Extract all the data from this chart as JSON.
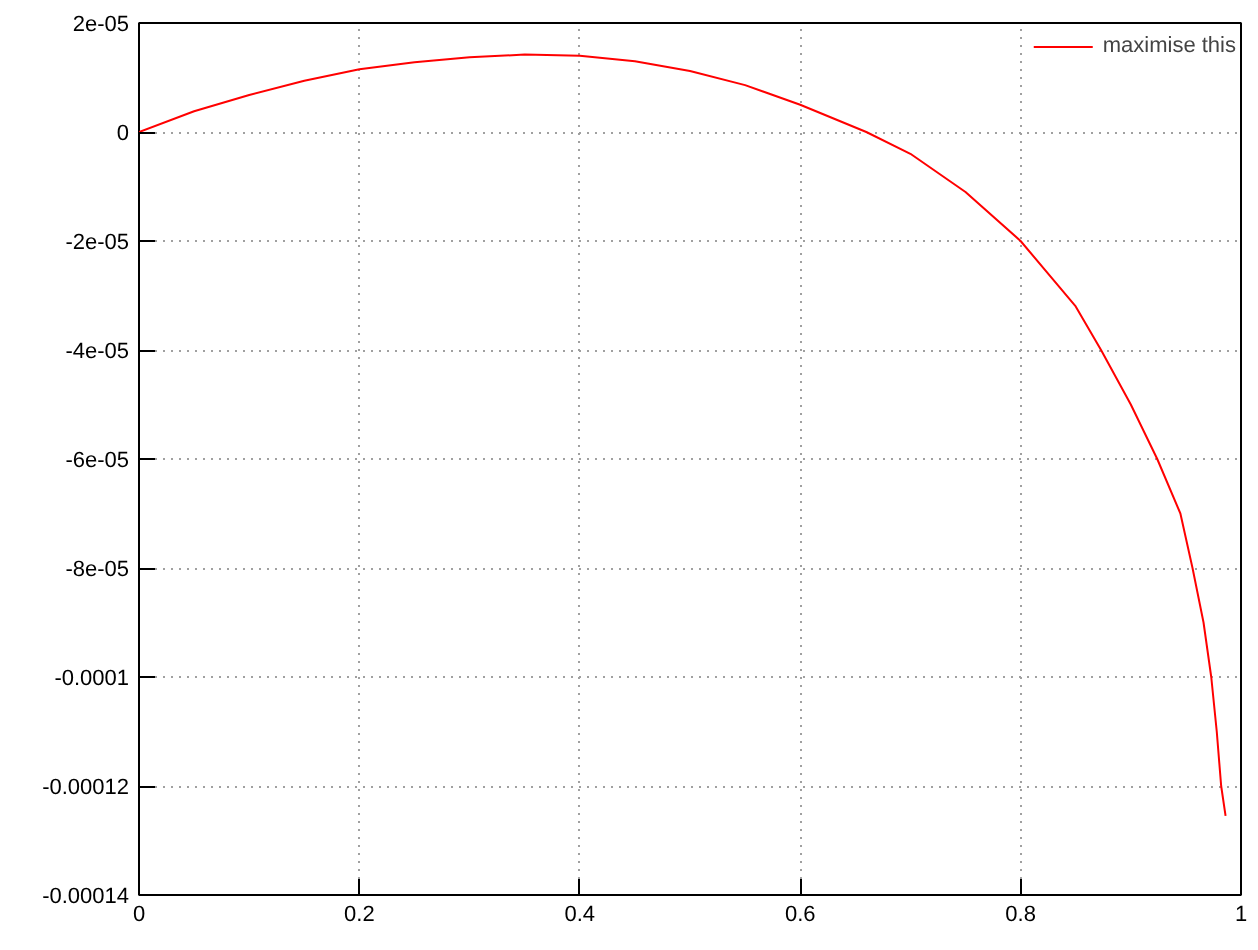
{
  "chart_data": {
    "type": "line",
    "x": [
      0,
      0.05,
      0.1,
      0.15,
      0.2,
      0.25,
      0.3,
      0.35,
      0.4,
      0.45,
      0.5,
      0.55,
      0.6,
      0.66,
      0.7,
      0.75,
      0.8,
      0.85,
      0.873,
      0.9,
      0.924,
      0.945,
      0.956,
      0.966,
      0.973,
      0.978,
      0.982,
      0.986
    ],
    "series": [
      {
        "name": "maximise this",
        "color": "#ff0000",
        "values": [
          0,
          3.8e-06,
          6.8e-06,
          9.4e-06,
          1.15e-05,
          1.28e-05,
          1.37e-05,
          1.42e-05,
          1.4e-05,
          1.3e-05,
          1.12e-05,
          8.6e-06,
          5e-06,
          0,
          -4e-06,
          -1.1e-05,
          -2e-05,
          -3.2e-05,
          -4e-05,
          -5e-05,
          -6e-05,
          -7e-05,
          -8e-05,
          -9e-05,
          -0.0001,
          -0.00011,
          -0.00012,
          -0.0001255
        ]
      }
    ],
    "xlim": [
      0,
      1
    ],
    "ylim": [
      -0.00014,
      2e-05
    ],
    "xticks": [
      0,
      0.2,
      0.4,
      0.6,
      0.8,
      1
    ],
    "yticks": [
      {
        "value": -0.00014,
        "label": "-0.00014"
      },
      {
        "value": -0.00012,
        "label": "-0.00012"
      },
      {
        "value": -0.0001,
        "label": "-0.0001"
      },
      {
        "value": -8e-05,
        "label": "-8e-05"
      },
      {
        "value": -6e-05,
        "label": "-6e-05"
      },
      {
        "value": -4e-05,
        "label": "-4e-05"
      },
      {
        "value": -2e-05,
        "label": "-2e-05"
      },
      {
        "value": 0,
        "label": "0"
      },
      {
        "value": 2e-05,
        "label": "2e-05"
      }
    ],
    "grid": true,
    "legend": "top right",
    "line_style": "solid"
  }
}
